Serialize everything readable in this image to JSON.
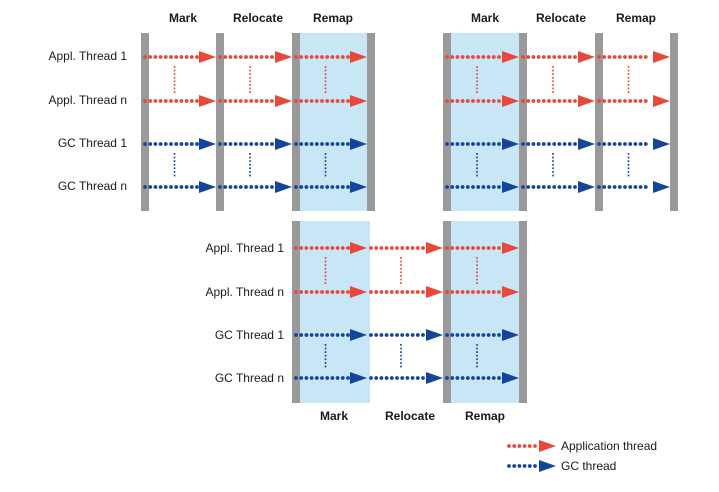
{
  "colors": {
    "application": "#e8483a",
    "gc": "#14459a",
    "divider": "#9a9a9a",
    "remap_shade": "#c9e6f7"
  },
  "top": {
    "phases_left": [
      "Mark",
      "Relocate",
      "Remap"
    ],
    "phases_right": [
      "Mark",
      "Relocate",
      "Remap"
    ],
    "rows": [
      "Appl. Thread 1",
      "Appl. Thread n",
      "GC Thread 1",
      "GC Thread n"
    ]
  },
  "bottom": {
    "phases": [
      "Mark",
      "Relocate",
      "Remap"
    ],
    "rows": [
      "Appl. Thread 1",
      "Appl. Thread n",
      "GC Thread 1",
      "GC Thread n"
    ]
  },
  "legend": {
    "application": "Application thread",
    "gc": "GC thread"
  }
}
